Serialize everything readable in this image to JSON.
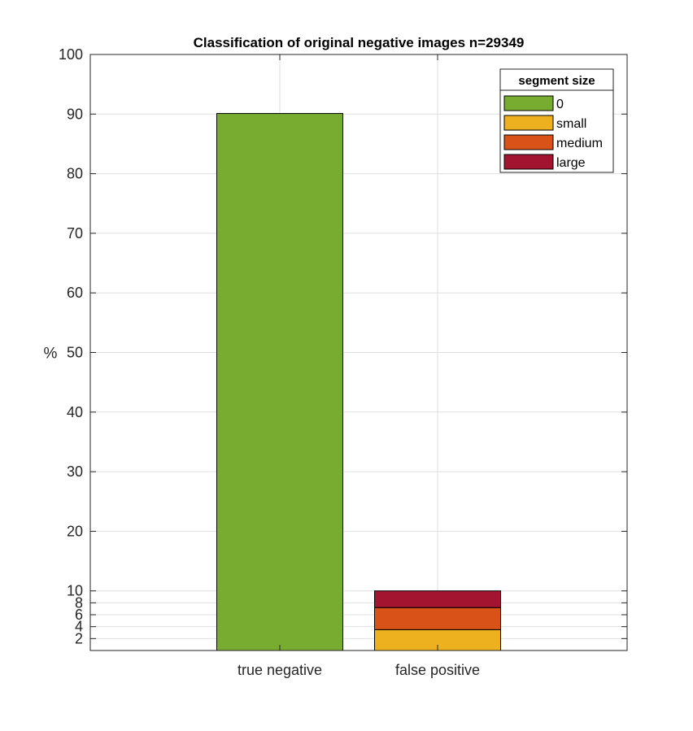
{
  "chart_data": {
    "type": "bar",
    "stacked": true,
    "title": "Classification of original negative images n=29349",
    "xlabel": "",
    "ylabel": "%",
    "ylim": [
      0,
      100
    ],
    "yticks": [
      2,
      4,
      6,
      8,
      10,
      20,
      30,
      40,
      50,
      60,
      70,
      80,
      90,
      100
    ],
    "grid": true,
    "legend_position": "top-right",
    "legend_title": "segment size",
    "categories": [
      "true negative",
      "false positive"
    ],
    "series": [
      {
        "name": "0",
        "color": "#77AC30",
        "values": [
          90.1,
          0
        ]
      },
      {
        "name": "small",
        "color": "#EDB120",
        "values": [
          0,
          3.5
        ]
      },
      {
        "name": "medium",
        "color": "#D95319",
        "values": [
          0,
          3.7
        ]
      },
      {
        "name": "large",
        "color": "#A2142F",
        "values": [
          0,
          2.8
        ]
      }
    ]
  }
}
